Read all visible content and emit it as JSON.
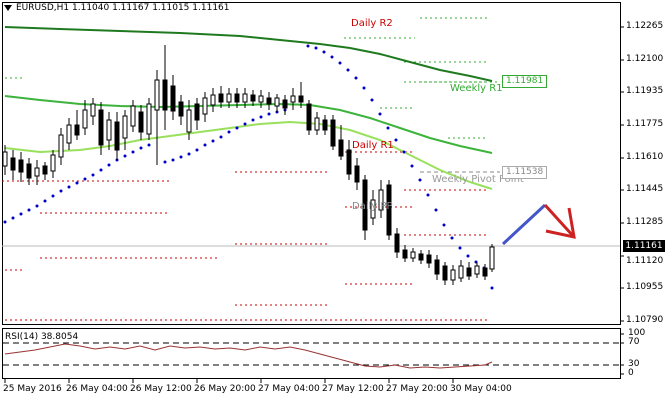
{
  "chart_header": {
    "symbol": "EURUSD,H1",
    "open": "1.11040",
    "high": "1.11167",
    "low": "1.11015",
    "close": "1.11161"
  },
  "price_axis": {
    "ticks": [
      "1.12265",
      "1.12100",
      "1.11935",
      "1.11775",
      "1.11610",
      "1.11445",
      "1.11285",
      "1.11120",
      "1.10955",
      "1.10790"
    ],
    "current_price": "1.11161"
  },
  "levels": {
    "daily_r2": "Daily R2",
    "daily_r1": "Daily R1",
    "daily_pp": "Daily PP",
    "weekly_r1": "Weekly R1",
    "weekly_r1_value": "1.11981",
    "weekly_pivot": "Weekly Pivot Point",
    "weekly_pivot_value": "1.11538"
  },
  "rsi": {
    "label": "RSI(14) 38.8054",
    "axis_ticks": [
      "100",
      "70",
      "30",
      "0"
    ]
  },
  "time_axis": {
    "ticks": [
      "25 May 2016",
      "26 May 04:00",
      "26 May 12:00",
      "26 May 20:00",
      "27 May 04:00",
      "27 May 12:00",
      "27 May 20:00",
      "30 May 04:00"
    ]
  },
  "colors": {
    "candle": "#000000",
    "ma_dark": "#1f7a1f",
    "ma_mid": "#3cb43c",
    "ma_light": "#99e05c",
    "psar": "#0000cc",
    "daily_pivot_line": "#cc0000",
    "weekly_pivot_line": "#33aa33",
    "arrow_up": "#4455cc",
    "arrow_down": "#cc2222"
  }
}
